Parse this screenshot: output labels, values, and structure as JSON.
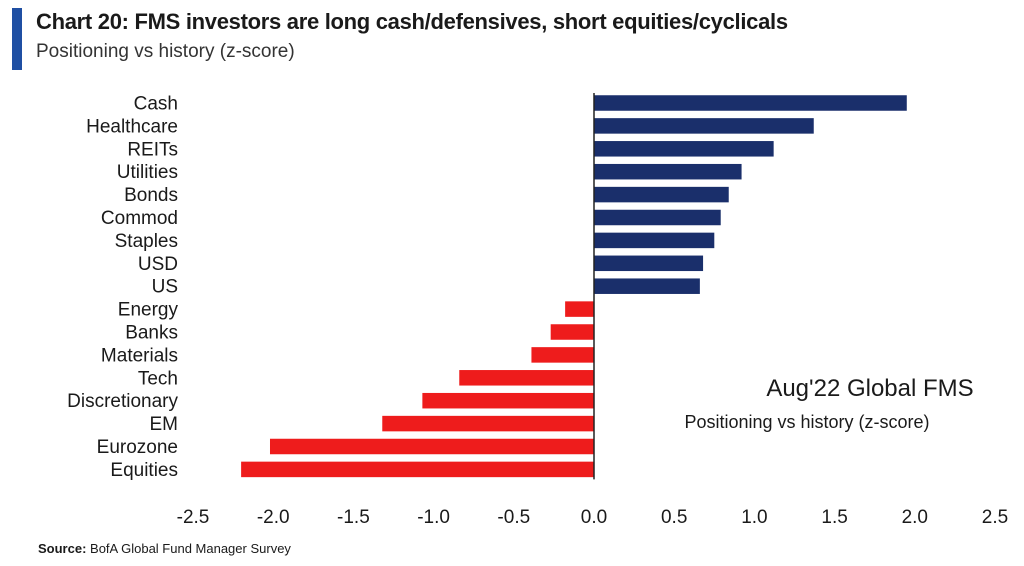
{
  "header": {
    "title": "Chart 20: FMS investors are long cash/defensives, short equities/cyclicals",
    "subtitle": "Positioning vs history (z-score)"
  },
  "annotation": {
    "title": "Aug'22 Global FMS",
    "subtitle": "Positioning vs history (z-score)"
  },
  "source": {
    "label": "Source:",
    "text": "BofA Global Fund Manager Survey"
  },
  "colors": {
    "accent": "#1f4fa3",
    "positive": "#1a2f6b",
    "negative": "#ee1c1c"
  },
  "chart_data": {
    "type": "bar",
    "orientation": "horizontal",
    "categories": [
      "Cash",
      "Healthcare",
      "REITs",
      "Utilities",
      "Bonds",
      "Commod",
      "Staples",
      "USD",
      "US",
      "Energy",
      "Banks",
      "Materials",
      "Tech",
      "Discretionary",
      "EM",
      "Eurozone",
      "Equities"
    ],
    "values": [
      1.95,
      1.37,
      1.12,
      0.92,
      0.84,
      0.79,
      0.75,
      0.68,
      0.66,
      -0.18,
      -0.27,
      -0.39,
      -0.84,
      -1.07,
      -1.32,
      -2.02,
      -2.2
    ],
    "xlim": [
      -2.5,
      2.5
    ],
    "xticks": [
      "-2.5",
      "-2.0",
      "-1.5",
      "-1.0",
      "-0.5",
      "0.0",
      "0.5",
      "1.0",
      "1.5",
      "2.0",
      "2.5"
    ],
    "xlabel": "",
    "ylabel": "",
    "grid": false,
    "legend": "none"
  }
}
